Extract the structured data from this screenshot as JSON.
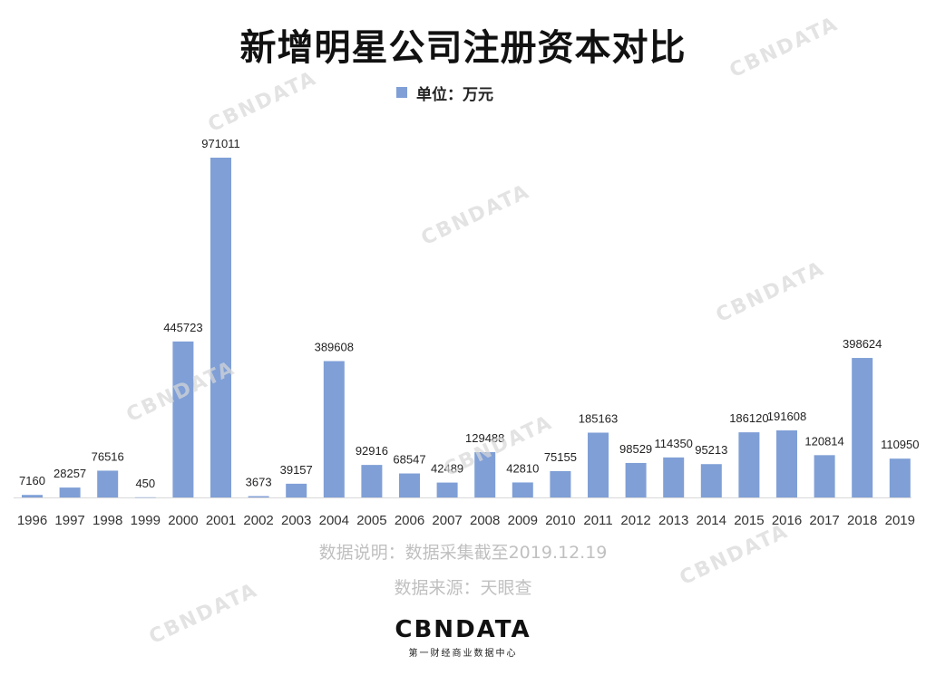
{
  "chart_data": {
    "type": "bar",
    "title": "新增明星公司注册资本对比",
    "legend": {
      "label": "单位：万元",
      "placement": "top-center"
    },
    "categories": [
      "1996",
      "1997",
      "1998",
      "1999",
      "2000",
      "2001",
      "2002",
      "2003",
      "2004",
      "2005",
      "2006",
      "2007",
      "2008",
      "2009",
      "2010",
      "2011",
      "2012",
      "2013",
      "2014",
      "2015",
      "2016",
      "2017",
      "2018",
      "2019"
    ],
    "series": [
      {
        "name": "单位：万元",
        "color": "#7f9fd6",
        "values": [
          7160,
          28257,
          76516,
          450,
          445723,
          971011,
          3673,
          39157,
          389608,
          92916,
          68547,
          42489,
          129488,
          42810,
          75155,
          185163,
          98529,
          114350,
          95213,
          186120,
          191608,
          120814,
          398624,
          110950
        ]
      }
    ],
    "ylim": [
      0,
      971011
    ],
    "grid": false
  },
  "footer": {
    "note": "数据说明：数据采集截至2019.12.19",
    "source": "数据来源：天眼查"
  },
  "logo": {
    "main": "CBNDATA",
    "sub": "第一财经商业数据中心",
    "watermark": "CBNDATA"
  }
}
